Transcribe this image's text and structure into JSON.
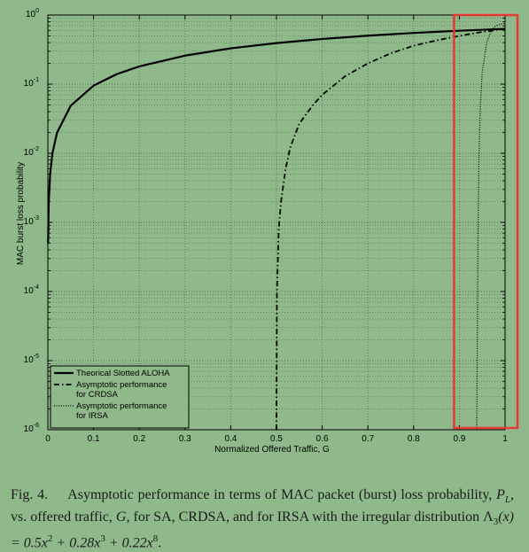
{
  "chart_data": {
    "type": "line",
    "xlabel": "Normalized Offered Traffic, G",
    "ylabel": "MAC burst loss probability",
    "xlim": [
      0,
      1
    ],
    "ylim": [
      1e-06,
      1
    ],
    "yscale": "log",
    "grid": true,
    "legend_position": "bottom-left",
    "x_ticks": [
      "0",
      "0.1",
      "0.2",
      "0.3",
      "0.4",
      "0.5",
      "0.6",
      "0.7",
      "0.8",
      "0.9",
      "1"
    ],
    "y_ticks": [
      {
        "base": "10",
        "exp": "0"
      },
      {
        "base": "10",
        "exp": "-1"
      },
      {
        "base": "10",
        "exp": "-2"
      },
      {
        "base": "10",
        "exp": "-3"
      },
      {
        "base": "10",
        "exp": "-4"
      },
      {
        "base": "10",
        "exp": "-5"
      },
      {
        "base": "10",
        "exp": "-6"
      }
    ],
    "series": [
      {
        "name": "Theorical Slotted ALOHA",
        "legend_lines": [
          "Theorical Slotted ALOHA"
        ],
        "style": "solid",
        "x": [
          0.0005,
          0.002,
          0.005,
          0.01,
          0.02,
          0.05,
          0.1,
          0.15,
          0.2,
          0.3,
          0.4,
          0.5,
          0.6,
          0.7,
          0.8,
          0.9,
          1.0
        ],
        "y": [
          0.0005,
          0.002,
          0.005,
          0.01,
          0.0198,
          0.0488,
          0.0952,
          0.139,
          0.181,
          0.259,
          0.33,
          0.393,
          0.451,
          0.503,
          0.551,
          0.593,
          0.632
        ]
      },
      {
        "name": "Asymptotic performance for CRDSA",
        "legend_lines": [
          "Asymptotic performance",
          "for CRDSA"
        ],
        "style": "dashdot",
        "x": [
          0.5,
          0.501,
          0.505,
          0.51,
          0.52,
          0.53,
          0.55,
          0.58,
          0.6,
          0.65,
          0.7,
          0.75,
          0.8,
          0.85,
          0.9,
          0.95,
          1.0
        ],
        "y": [
          1e-06,
          0.0001,
          0.0008,
          0.002,
          0.006,
          0.012,
          0.027,
          0.05,
          0.07,
          0.13,
          0.2,
          0.28,
          0.36,
          0.43,
          0.5,
          0.57,
          0.632
        ]
      },
      {
        "name": "Asymptotic performance for IRSA",
        "legend_lines": [
          "Asymptotic performance",
          "for IRSA"
        ],
        "style": "dotted",
        "x": [
          0.938,
          0.939,
          0.94,
          0.941,
          0.943,
          0.946,
          0.95,
          0.96,
          0.97,
          0.98,
          0.99,
          1.0
        ],
        "y": [
          1e-06,
          1e-05,
          0.0001,
          0.001,
          0.01,
          0.05,
          0.15,
          0.4,
          0.6,
          0.7,
          0.74,
          0.76
        ]
      }
    ],
    "highlight_box": {
      "x": [
        0.9,
        1.0
      ],
      "color": "#e53935"
    }
  },
  "caption": {
    "fig_number": "Fig. 4.",
    "text_1": "Asymptotic performance in terms of MAC packet (burst) loss probability, ",
    "pl_symbol": "P",
    "pl_sub": "L",
    "text_2": ", vs. offered traffic, ",
    "g_symbol": "G",
    "text_3": ", for SA, CRDSA, and for IRSA with the irregular distribution ",
    "lambda": "Λ",
    "lambda_sub": "3",
    "formula_1": "(x) = 0.5x",
    "exp_1": "2",
    "formula_2": " + 0.28x",
    "exp_2": "3",
    "formula_3": " + 0.22x",
    "exp_3": "8",
    "end": "."
  }
}
